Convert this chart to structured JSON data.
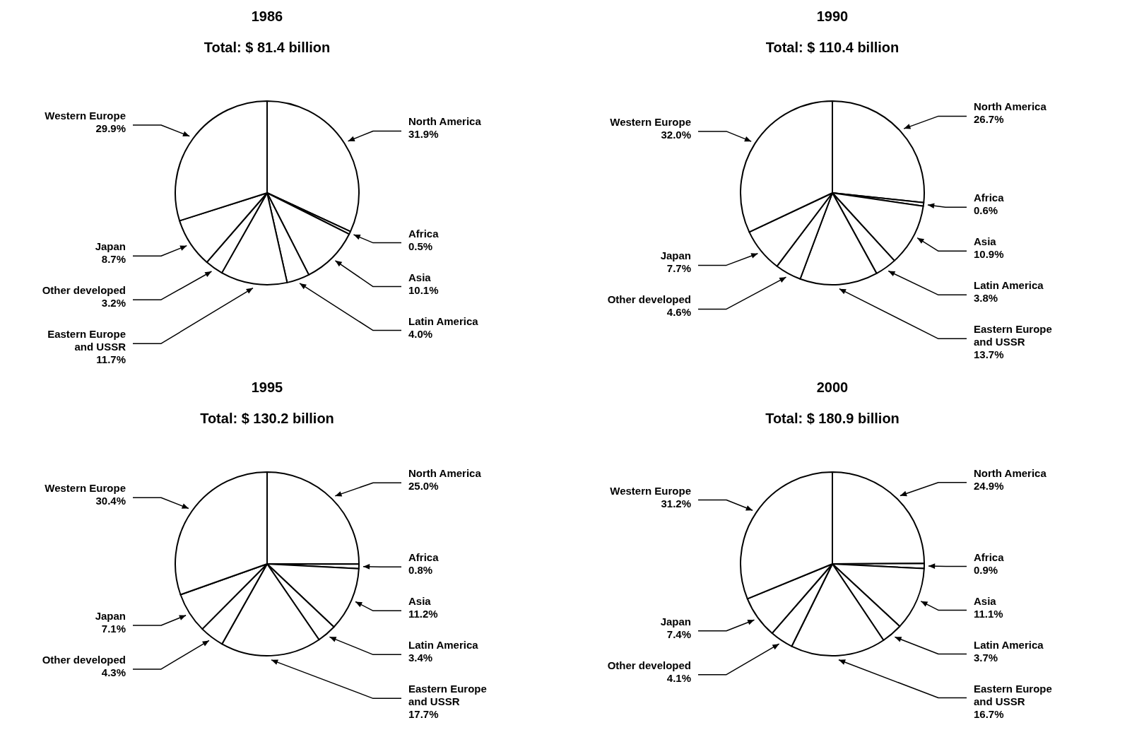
{
  "chart_data": [
    {
      "type": "pie",
      "title": "1986",
      "subtitle": "Total: $ 81.4 billion",
      "categories": [
        "North America",
        "Africa",
        "Asia",
        "Latin America",
        "Eastern Europe and USSR",
        "Other developed",
        "Japan",
        "Western Europe"
      ],
      "values": [
        31.9,
        0.5,
        10.1,
        4.0,
        11.7,
        3.2,
        8.7,
        29.9
      ],
      "value_labels": [
        "31.9%",
        "0.5%",
        "10.1%",
        "4.0%",
        "11.7%",
        "3.2%",
        "8.7%",
        "29.9%"
      ],
      "colors": [
        "#ffffff",
        "#ffffff",
        "#ffffff",
        "#ffffff",
        "#ffffff",
        "#ffffff",
        "#ffffff",
        "#ffffff"
      ]
    },
    {
      "type": "pie",
      "title": "1990",
      "subtitle": "Total: $ 110.4 billion",
      "categories": [
        "North America",
        "Africa",
        "Asia",
        "Latin America",
        "Eastern Europe and USSR",
        "Other developed",
        "Japan",
        "Western Europe"
      ],
      "values": [
        26.7,
        0.6,
        10.9,
        3.8,
        13.7,
        4.6,
        7.7,
        32.0
      ],
      "value_labels": [
        "26.7%",
        "0.6%",
        "10.9%",
        "3.8%",
        "13.7%",
        "4.6%",
        "7.7%",
        "32.0%"
      ],
      "colors": [
        "#ffffff",
        "#ffffff",
        "#ffffff",
        "#ffffff",
        "#ffffff",
        "#ffffff",
        "#ffffff",
        "#ffffff"
      ]
    },
    {
      "type": "pie",
      "title": "1995",
      "subtitle": "Total: $ 130.2 billion",
      "categories": [
        "North America",
        "Africa",
        "Asia",
        "Latin America",
        "Eastern Europe and USSR",
        "Other developed",
        "Japan",
        "Western Europe"
      ],
      "values": [
        25.0,
        0.8,
        11.2,
        3.4,
        17.7,
        4.3,
        7.1,
        30.4
      ],
      "value_labels": [
        "25.0%",
        "0.8%",
        "11.2%",
        "3.4%",
        "17.7%",
        "4.3%",
        "7.1%",
        "30.4%"
      ],
      "colors": [
        "#ffffff",
        "#ffffff",
        "#ffffff",
        "#ffffff",
        "#ffffff",
        "#ffffff",
        "#ffffff",
        "#ffffff"
      ]
    },
    {
      "type": "pie",
      "title": "2000",
      "subtitle": "Total: $ 180.9 billion",
      "categories": [
        "North America",
        "Africa",
        "Asia",
        "Latin America",
        "Eastern Europe and USSR",
        "Other developed",
        "Japan",
        "Western Europe"
      ],
      "values": [
        24.9,
        0.9,
        11.1,
        3.7,
        16.7,
        4.1,
        7.4,
        31.2
      ],
      "value_labels": [
        "24.9%",
        "0.9%",
        "11.1%",
        "3.7%",
        "16.7%",
        "4.1%",
        "7.4%",
        "31.2%"
      ],
      "colors": [
        "#ffffff",
        "#ffffff",
        "#ffffff",
        "#ffffff",
        "#ffffff",
        "#ffffff",
        "#ffffff",
        "#ffffff"
      ]
    }
  ]
}
